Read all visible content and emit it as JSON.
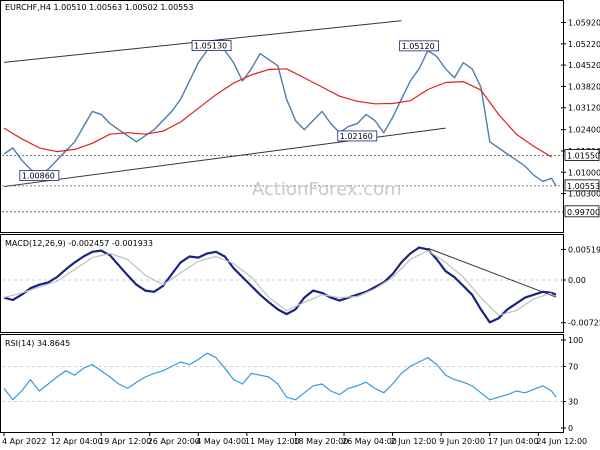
{
  "chart_data": [
    {
      "type": "line",
      "title": "EURCHF,H4  1.00510 1.00563 1.00502 1.00553",
      "watermark": "ActionForex.com",
      "ylim": [
        0.993,
        1.062
      ],
      "y_ticks": [
        {
          "value": 1.0592,
          "label": "1.05920"
        },
        {
          "value": 1.0522,
          "label": "1.05220"
        },
        {
          "value": 1.0452,
          "label": "1.04520"
        },
        {
          "value": 1.0382,
          "label": "1.03820"
        },
        {
          "value": 1.0312,
          "label": "1.03120"
        },
        {
          "value": 1.024,
          "label": "1.02400"
        },
        {
          "value": 1.017,
          "label": "1.01700"
        },
        {
          "value": 1.01,
          "label": "1.01000"
        },
        {
          "value": 1.003,
          "label": "1.00300"
        }
      ],
      "price_label_boxes": [
        {
          "value": 1.0155,
          "label": "1.01550"
        },
        {
          "value": 1.00553,
          "label": "1.00553"
        },
        {
          "value": 0.997,
          "label": "0.99700"
        }
      ],
      "horizontal_lines": [
        1.0155,
        1.00553,
        0.997
      ],
      "annotations": [
        {
          "label": "1.05130",
          "x": 47,
          "y": 1.0513
        },
        {
          "label": "1.05120",
          "x": 94,
          "y": 1.0512
        },
        {
          "label": "1.02160",
          "x": 80,
          "y": 1.0216
        },
        {
          "label": "1.00860",
          "x": 8,
          "y": 1.0086
        }
      ],
      "trendlines": [
        {
          "name": "upper channel",
          "x": [
            0,
            90
          ],
          "y": [
            1.0461,
            1.0598
          ]
        },
        {
          "name": "lower channel",
          "x": [
            0,
            100
          ],
          "y": [
            1.0053,
            1.0245
          ]
        }
      ],
      "series": [
        {
          "name": "price",
          "color": "#4a7fb0",
          "x": [
            0,
            2,
            4,
            6,
            8,
            10,
            12,
            14,
            16,
            18,
            20,
            22,
            24,
            26,
            28,
            30,
            32,
            34,
            36,
            38,
            40,
            42,
            44,
            46,
            48,
            50,
            52,
            54,
            56,
            58,
            60,
            62,
            64,
            66,
            68,
            70,
            72,
            74,
            76,
            78,
            80,
            82,
            84,
            86,
            88,
            90,
            92,
            94,
            96,
            98,
            100,
            102,
            104,
            106,
            108,
            110,
            112,
            114,
            116,
            118,
            120,
            122,
            124,
            125
          ],
          "y": [
            1.016,
            1.018,
            1.014,
            1.011,
            1.009,
            1.011,
            1.014,
            1.017,
            1.02,
            1.025,
            1.03,
            1.029,
            1.026,
            1.024,
            1.022,
            1.02,
            1.022,
            1.024,
            1.027,
            1.03,
            1.034,
            1.04,
            1.046,
            1.05,
            1.052,
            1.05,
            1.046,
            1.04,
            1.044,
            1.049,
            1.047,
            1.045,
            1.034,
            1.027,
            1.024,
            1.027,
            1.03,
            1.026,
            1.023,
            1.025,
            1.026,
            1.029,
            1.027,
            1.023,
            1.028,
            1.034,
            1.04,
            1.044,
            1.05,
            1.048,
            1.044,
            1.041,
            1.046,
            1.044,
            1.038,
            1.02,
            1.018,
            1.016,
            1.014,
            1.012,
            1.009,
            1.007,
            1.008,
            1.0055
          ]
        },
        {
          "name": "moving average",
          "color": "#e02020",
          "x": [
            0,
            4,
            8,
            12,
            16,
            20,
            24,
            28,
            32,
            36,
            40,
            44,
            48,
            52,
            56,
            60,
            64,
            68,
            72,
            76,
            80,
            84,
            88,
            92,
            96,
            100,
            104,
            108,
            112,
            116,
            120,
            124
          ],
          "y": [
            1.0245,
            1.021,
            1.018,
            1.0168,
            1.0175,
            1.0195,
            1.0225,
            1.023,
            1.0225,
            1.0235,
            1.0265,
            1.031,
            1.0355,
            1.0393,
            1.042,
            1.0438,
            1.044,
            1.041,
            1.038,
            1.035,
            1.0333,
            1.0325,
            1.0326,
            1.0335,
            1.0372,
            1.0395,
            1.0398,
            1.037,
            1.029,
            1.0225,
            1.0185,
            1.015
          ]
        }
      ]
    },
    {
      "type": "line",
      "title": "MACD(12,26,9) -0.002457 -0.001933",
      "ylim": [
        -0.0085,
        0.0068
      ],
      "y_ticks": [
        {
          "value": 0.005196,
          "label": "0.005196"
        },
        {
          "value": 0.0,
          "label": "0.00"
        },
        {
          "value": -0.007259,
          "label": "-0.007259"
        }
      ],
      "trendlines": [
        {
          "name": "macd trendline",
          "x": [
            96,
            125
          ],
          "y": [
            0.0054,
            -0.0029
          ]
        }
      ],
      "series": [
        {
          "name": "MACD",
          "color": "#1a237e",
          "x": [
            0,
            2,
            4,
            6,
            8,
            10,
            12,
            14,
            16,
            18,
            20,
            22,
            24,
            26,
            28,
            30,
            32,
            34,
            36,
            38,
            40,
            42,
            44,
            46,
            48,
            50,
            52,
            54,
            56,
            58,
            60,
            62,
            64,
            66,
            68,
            70,
            72,
            74,
            76,
            78,
            80,
            82,
            84,
            86,
            88,
            90,
            92,
            94,
            96,
            98,
            100,
            102,
            104,
            106,
            108,
            110,
            112,
            114,
            116,
            118,
            120,
            122,
            124,
            125
          ],
          "y": [
            -0.003,
            -0.0034,
            -0.0025,
            -0.0014,
            -0.0008,
            -0.0004,
            0.0005,
            0.0018,
            0.003,
            0.004,
            0.0048,
            0.005,
            0.0042,
            0.0025,
            0.0008,
            -0.0008,
            -0.0018,
            -0.002,
            -0.001,
            0.001,
            0.003,
            0.004,
            0.0038,
            0.0045,
            0.0048,
            0.004,
            0.002,
            0.0005,
            -0.001,
            -0.0025,
            -0.0038,
            -0.005,
            -0.0058,
            -0.005,
            -0.003,
            -0.0018,
            -0.0022,
            -0.003,
            -0.0035,
            -0.003,
            -0.0025,
            -0.002,
            -0.0012,
            -0.0004,
            0.001,
            0.003,
            0.0045,
            0.0055,
            0.0052,
            0.0035,
            0.0015,
            0.0005,
            -0.001,
            -0.0025,
            -0.005,
            -0.0072,
            -0.0065,
            -0.005,
            -0.004,
            -0.003,
            -0.0025,
            -0.002,
            -0.0022,
            -0.0025
          ]
        },
        {
          "name": "signal",
          "color": "#c0c0c0",
          "x": [
            0,
            4,
            8,
            12,
            16,
            20,
            24,
            28,
            32,
            36,
            40,
            44,
            48,
            52,
            56,
            60,
            64,
            68,
            72,
            76,
            80,
            84,
            88,
            92,
            96,
            100,
            104,
            108,
            112,
            116,
            120,
            124
          ],
          "y": [
            -0.003,
            -0.0022,
            -0.0012,
            -0.0002,
            0.0018,
            0.0038,
            0.0045,
            0.0035,
            0.0008,
            -0.0008,
            0.0012,
            0.0032,
            0.004,
            0.0028,
            0.0005,
            -0.003,
            -0.0052,
            -0.0038,
            -0.0025,
            -0.003,
            -0.0028,
            -0.0015,
            0.0004,
            0.0035,
            0.005,
            0.003,
            0.0005,
            -0.003,
            -0.006,
            -0.0052,
            -0.0032,
            -0.0022
          ]
        }
      ]
    },
    {
      "type": "line",
      "title": "RSI(14) 34.8645",
      "ylim": [
        0,
        100
      ],
      "y_ticks": [
        {
          "value": 100,
          "label": "100"
        },
        {
          "value": 70,
          "label": "70"
        },
        {
          "value": 30,
          "label": "30"
        },
        {
          "value": 0,
          "label": "0"
        }
      ],
      "series": [
        {
          "name": "RSI",
          "color": "#3a9ad9",
          "x": [
            0,
            2,
            4,
            6,
            8,
            10,
            12,
            14,
            16,
            18,
            20,
            22,
            24,
            26,
            28,
            30,
            32,
            34,
            36,
            38,
            40,
            42,
            44,
            46,
            48,
            50,
            52,
            54,
            56,
            58,
            60,
            62,
            64,
            66,
            68,
            70,
            72,
            74,
            76,
            78,
            80,
            82,
            84,
            86,
            88,
            90,
            92,
            94,
            96,
            98,
            100,
            102,
            104,
            106,
            108,
            110,
            112,
            114,
            116,
            118,
            120,
            122,
            124,
            125
          ],
          "y": [
            45,
            32,
            42,
            55,
            42,
            50,
            58,
            65,
            60,
            68,
            72,
            65,
            58,
            50,
            45,
            52,
            58,
            62,
            65,
            70,
            75,
            72,
            78,
            85,
            80,
            68,
            55,
            50,
            62,
            60,
            58,
            50,
            35,
            32,
            40,
            48,
            50,
            42,
            38,
            45,
            48,
            52,
            45,
            40,
            50,
            62,
            70,
            75,
            80,
            72,
            60,
            55,
            52,
            48,
            40,
            32,
            35,
            38,
            42,
            40,
            44,
            48,
            42,
            35
          ]
        }
      ]
    }
  ],
  "x_axis": {
    "labels": [
      {
        "x": 0,
        "label": "4 Apr 2022"
      },
      {
        "x": 11,
        "label": "12 Apr 04:00"
      },
      {
        "x": 22,
        "label": "19 Apr 12:00"
      },
      {
        "x": 33,
        "label": "26 Apr 20:00"
      },
      {
        "x": 44,
        "label": "4 May 04:00"
      },
      {
        "x": 55,
        "label": "11 May 12:00"
      },
      {
        "x": 66,
        "label": "18 May 20:00"
      },
      {
        "x": 77,
        "label": "26 May 04:00"
      },
      {
        "x": 88,
        "label": "2 Jun 12:00"
      },
      {
        "x": 99,
        "label": "9 Jun 20:00"
      },
      {
        "x": 110,
        "label": "17 Jun 04:00"
      },
      {
        "x": 121,
        "label": "24 Jun 12:00"
      }
    ]
  }
}
